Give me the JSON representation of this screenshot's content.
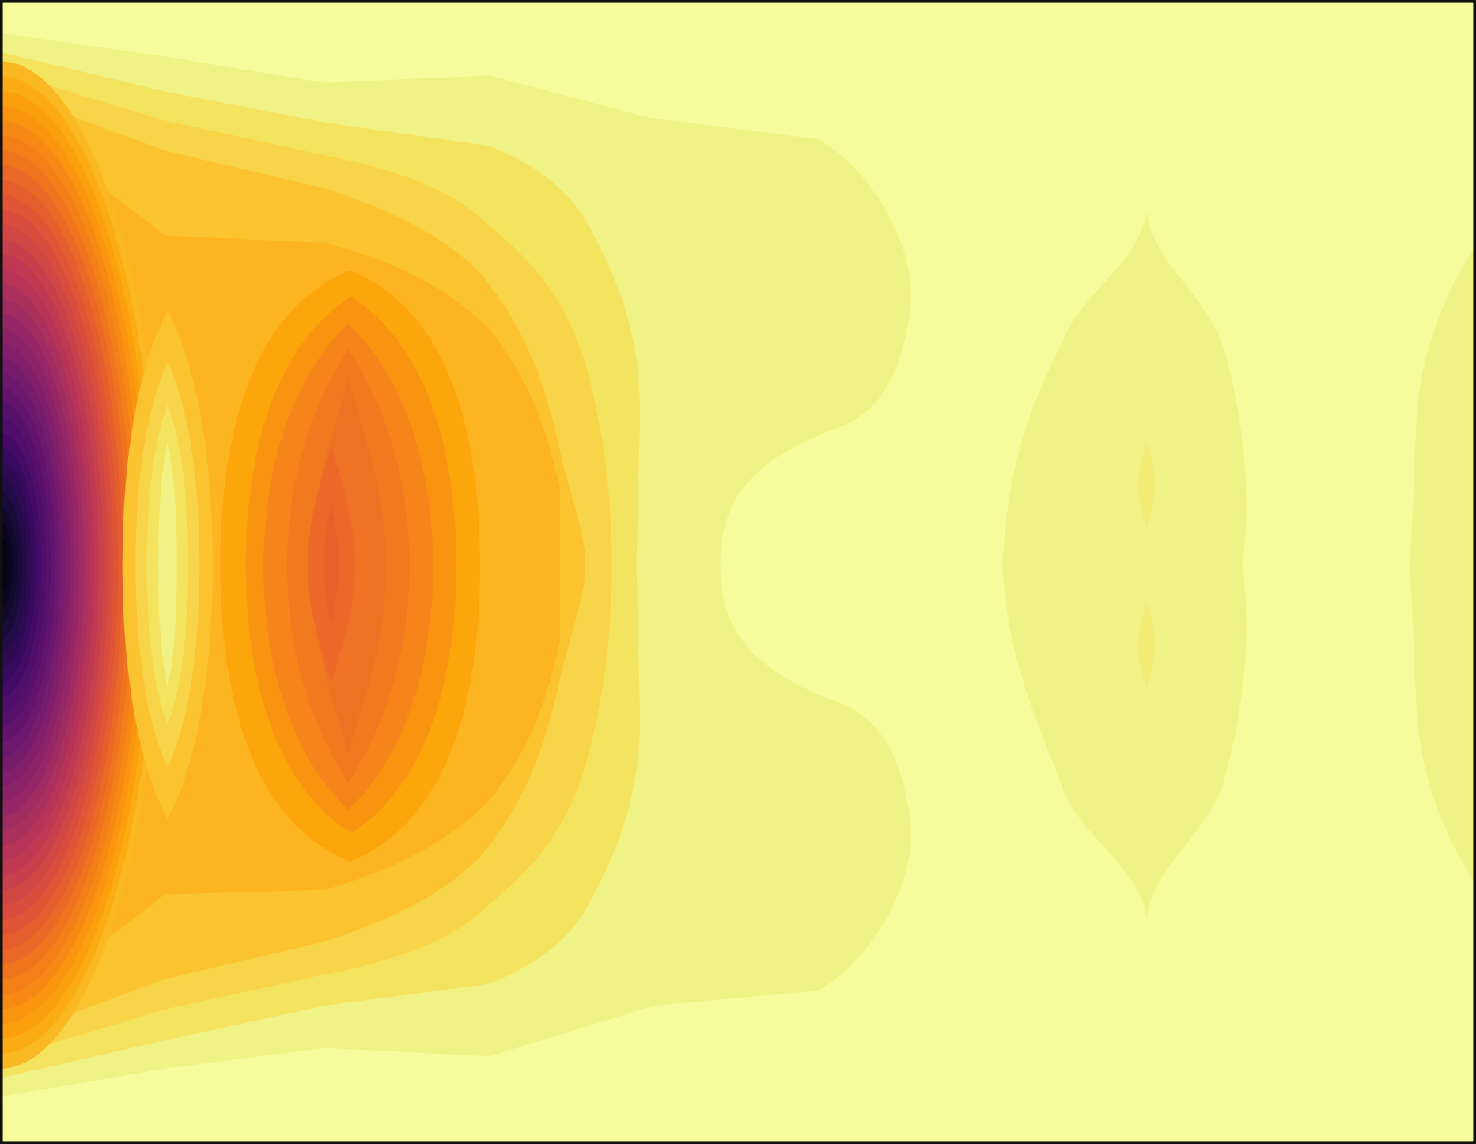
{
  "chart_data": {
    "type": "contour",
    "colormap": "inferno",
    "colors": [
      "#f7fb9b",
      "#f1f285",
      "#f4e35f",
      "#f8d548",
      "#fbc330",
      "#fcb520"
    ],
    "inner_colors": [
      "#fca60c",
      "#f99410",
      "#f5841b",
      "#f27a1e",
      "#ef7124",
      "#ec6728",
      "#e8612a"
    ],
    "colormap_stops": [
      "#000004",
      "#160b39",
      "#420a68",
      "#6a176e",
      "#932667",
      "#bc3754",
      "#dd513a",
      "#f37819",
      "#fca50a",
      "#f6d746",
      "#fcffa4"
    ],
    "frame_color": "#111111"
  }
}
